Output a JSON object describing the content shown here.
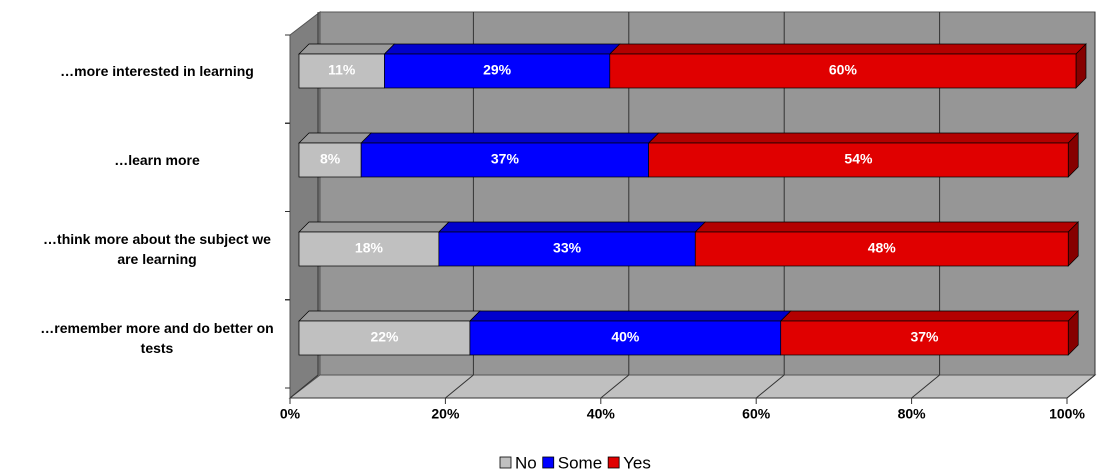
{
  "chart_data": {
    "type": "stacked-bar-horizontal",
    "categories": [
      "…more interested in learning",
      "…learn more",
      "…think more about the subject we are learning",
      "…remember more and do better on tests"
    ],
    "series": [
      {
        "name": "No",
        "color": "#c0c0c0",
        "values": [
          11,
          8,
          18,
          22
        ],
        "value_labels": [
          "11%",
          "8%",
          "18%",
          "22%"
        ]
      },
      {
        "name": "Some",
        "color": "#0000ff",
        "values": [
          29,
          37,
          33,
          40
        ],
        "value_labels": [
          "29%",
          "37%",
          "33%",
          "40%"
        ]
      },
      {
        "name": "Yes",
        "color": "#e00000",
        "values": [
          60,
          54,
          48,
          37
        ],
        "value_labels": [
          "60%",
          "54%",
          "48%",
          "37%"
        ]
      }
    ],
    "xlim": [
      0,
      100
    ],
    "xticks": [
      {
        "value": 0,
        "label": "0%"
      },
      {
        "value": 20,
        "label": "20%"
      },
      {
        "value": 40,
        "label": "40%"
      },
      {
        "value": 60,
        "label": "60%"
      },
      {
        "value": 80,
        "label": "80%"
      },
      {
        "value": 100,
        "label": "100%"
      }
    ],
    "grid": true,
    "legend": "bottom"
  }
}
